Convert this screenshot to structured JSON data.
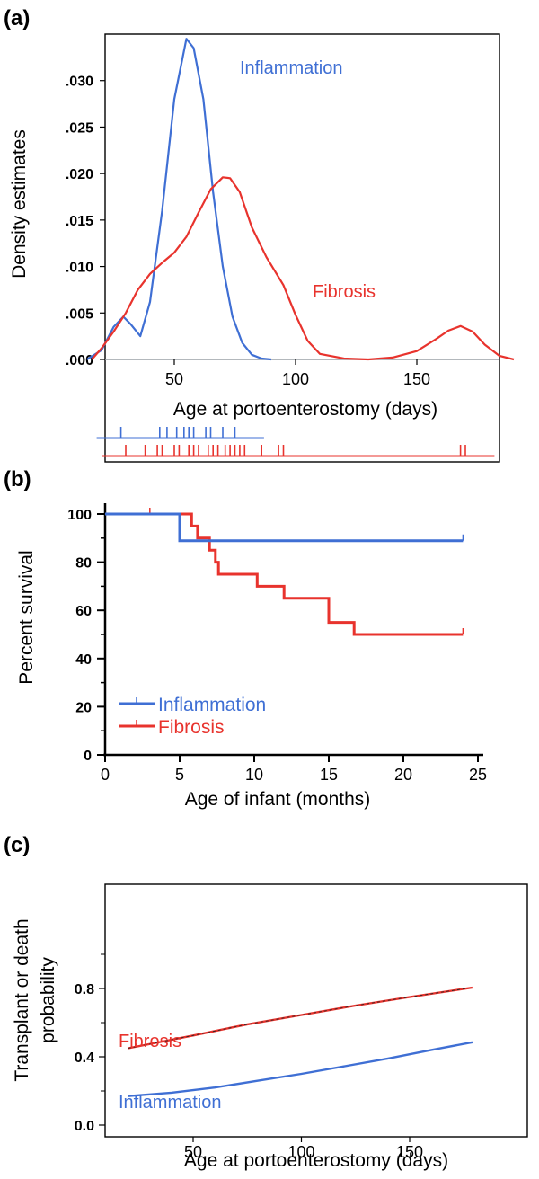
{
  "chart_data": [
    {
      "panel": "(a)",
      "type": "line",
      "xlabel": "Age at portoenterostomy (days)",
      "ylabel": "Density estimates",
      "xlim": [
        0,
        200
      ],
      "ylim": [
        -0.001,
        0.035
      ],
      "y_ticks": [
        ".000",
        ".005",
        ".010",
        ".015",
        ".020",
        ".025",
        ".030"
      ],
      "x_ticks": [
        "50",
        "100",
        "150"
      ],
      "series": [
        {
          "name": "Inflammation",
          "color": "#3f6fd4",
          "x": [
            14,
            20,
            25,
            29,
            32,
            36,
            40,
            45,
            50,
            55,
            58,
            62,
            66,
            70,
            74,
            78,
            82,
            86,
            90
          ],
          "y": [
            0.0,
            0.001,
            0.0035,
            0.0046,
            0.0038,
            0.0025,
            0.0062,
            0.016,
            0.028,
            0.0345,
            0.0335,
            0.028,
            0.018,
            0.01,
            0.0046,
            0.0018,
            0.0005,
            0.0001,
            0.0
          ]
        },
        {
          "name": "Fibrosis",
          "color": "#e8332d",
          "x": [
            16,
            20,
            25,
            30,
            35,
            40,
            45,
            50,
            55,
            60,
            65,
            70,
            73,
            77,
            82,
            88,
            95,
            100,
            105,
            110,
            120,
            130,
            140,
            150,
            158,
            163,
            168,
            173,
            178,
            184,
            190
          ],
          "y": [
            0.0,
            0.0012,
            0.003,
            0.005,
            0.0075,
            0.0092,
            0.0104,
            0.0115,
            0.0132,
            0.0158,
            0.0183,
            0.0196,
            0.0195,
            0.018,
            0.0142,
            0.011,
            0.008,
            0.0048,
            0.002,
            0.0006,
            0.0001,
            0.0,
            0.0002,
            0.0009,
            0.0022,
            0.0031,
            0.0036,
            0.003,
            0.0016,
            0.0004,
            0.0
          ]
        }
      ],
      "rug": {
        "Inflammation": [
          28,
          44,
          47,
          51,
          54,
          56,
          58,
          63,
          65,
          70,
          75
        ],
        "Fibrosis": [
          30,
          38,
          43,
          45,
          50,
          52,
          56,
          58,
          60,
          64,
          66,
          68,
          71,
          73,
          75,
          77,
          79,
          86,
          93,
          95,
          168,
          170
        ]
      }
    },
    {
      "panel": "(b)",
      "type": "line",
      "step": true,
      "xlabel": "Age of infant (months)",
      "ylabel": "Percent survival",
      "xlim": [
        0,
        25
      ],
      "ylim": [
        0,
        100
      ],
      "y_ticks": [
        "0",
        "20",
        "40",
        "60",
        "80",
        "100"
      ],
      "x_ticks": [
        "0",
        "5",
        "10",
        "15",
        "20",
        "25"
      ],
      "legend": "bottom-left",
      "series": [
        {
          "name": "Inflammation",
          "color": "#3f6fd4",
          "x": [
            0,
            5,
            24
          ],
          "y": [
            100,
            88.9,
            88.9
          ]
        },
        {
          "name": "Fibrosis",
          "color": "#e8332d",
          "x": [
            0,
            5.8,
            6.2,
            7,
            7.4,
            7.6,
            10.2,
            12,
            15,
            16.7,
            24
          ],
          "y": [
            100,
            95,
            90,
            85,
            80,
            75,
            70,
            65,
            55,
            50,
            50
          ]
        }
      ],
      "censor_marks": {
        "Inflammation": [
          24
        ],
        "Fibrosis": [
          3,
          24
        ]
      }
    },
    {
      "panel": "(c)",
      "type": "line",
      "xlabel": "Age at portoenterostomy (days)",
      "ylabel": "Transplant or death probability",
      "ylabel_lines": [
        "Transplant or death",
        "probability"
      ],
      "xlim": [
        3,
        190
      ],
      "ylim": [
        -0.05,
        1.0
      ],
      "y_ticks": [
        "0.0",
        "0.4",
        "0.8"
      ],
      "x_ticks": [
        "50",
        "100",
        "150"
      ],
      "series": [
        {
          "name": "Fibrosis",
          "color": "#e8332d",
          "x": [
            20,
            50,
            75,
            100,
            125,
            150,
            179
          ],
          "y": [
            0.45,
            0.525,
            0.59,
            0.645,
            0.7,
            0.75,
            0.805
          ]
        },
        {
          "name": "Inflammation",
          "color": "#3f6fd4",
          "x": [
            20,
            40,
            60,
            80,
            100,
            120,
            140,
            160,
            179
          ],
          "y": [
            0.17,
            0.19,
            0.22,
            0.26,
            0.3,
            0.345,
            0.39,
            0.44,
            0.485
          ]
        }
      ]
    }
  ]
}
